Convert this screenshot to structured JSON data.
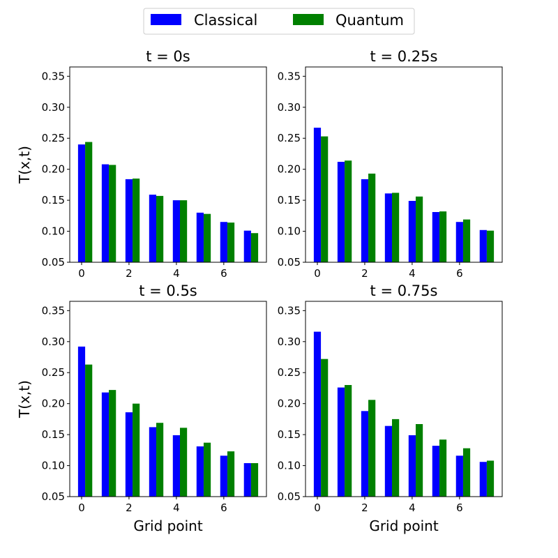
{
  "legend": {
    "position": "top-center",
    "entries": [
      {
        "name": "Classical",
        "color": "#0000ff"
      },
      {
        "name": "Quantum",
        "color": "#008000"
      }
    ]
  },
  "chart_data": [
    {
      "type": "bar",
      "title": "t = 0s",
      "xlabel": "",
      "ylabel": "T(x,t)",
      "x": [
        0,
        1,
        2,
        3,
        4,
        5,
        6,
        7
      ],
      "xticks": [
        "0",
        "2",
        "4",
        "6"
      ],
      "ylim": [
        0.05,
        0.365
      ],
      "yticks": [
        "0.05",
        "0.10",
        "0.15",
        "0.20",
        "0.25",
        "0.30",
        "0.35"
      ],
      "grid": false,
      "series": [
        {
          "name": "Classical",
          "color": "#0000ff",
          "values": [
            0.24,
            0.208,
            0.184,
            0.159,
            0.15,
            0.13,
            0.115,
            0.101
          ]
        },
        {
          "name": "Quantum",
          "color": "#008000",
          "values": [
            0.244,
            0.207,
            0.185,
            0.157,
            0.15,
            0.128,
            0.114,
            0.097
          ]
        }
      ]
    },
    {
      "type": "bar",
      "title": "t = 0.25s",
      "xlabel": "",
      "ylabel": "",
      "x": [
        0,
        1,
        2,
        3,
        4,
        5,
        6,
        7
      ],
      "xticks": [
        "0",
        "2",
        "4",
        "6"
      ],
      "ylim": [
        0.05,
        0.365
      ],
      "yticks": [
        "0.05",
        "0.10",
        "0.15",
        "0.20",
        "0.25",
        "0.30",
        "0.35"
      ],
      "grid": false,
      "series": [
        {
          "name": "Classical",
          "color": "#0000ff",
          "values": [
            0.267,
            0.212,
            0.184,
            0.161,
            0.149,
            0.131,
            0.115,
            0.102
          ]
        },
        {
          "name": "Quantum",
          "color": "#008000",
          "values": [
            0.253,
            0.214,
            0.193,
            0.162,
            0.156,
            0.132,
            0.119,
            0.101
          ]
        }
      ]
    },
    {
      "type": "bar",
      "title": "t = 0.5s",
      "xlabel": "Grid point",
      "ylabel": "T(x,t)",
      "x": [
        0,
        1,
        2,
        3,
        4,
        5,
        6,
        7
      ],
      "xticks": [
        "0",
        "2",
        "4",
        "6"
      ],
      "ylim": [
        0.05,
        0.365
      ],
      "yticks": [
        "0.05",
        "0.10",
        "0.15",
        "0.20",
        "0.25",
        "0.30",
        "0.35"
      ],
      "grid": false,
      "series": [
        {
          "name": "Classical",
          "color": "#0000ff",
          "values": [
            0.292,
            0.218,
            0.186,
            0.162,
            0.149,
            0.131,
            0.116,
            0.104
          ]
        },
        {
          "name": "Quantum",
          "color": "#008000",
          "values": [
            0.263,
            0.222,
            0.2,
            0.169,
            0.161,
            0.137,
            0.123,
            0.104
          ]
        }
      ]
    },
    {
      "type": "bar",
      "title": "t = 0.75s",
      "xlabel": "Grid point",
      "ylabel": "",
      "x": [
        0,
        1,
        2,
        3,
        4,
        5,
        6,
        7
      ],
      "xticks": [
        "0",
        "2",
        "4",
        "6"
      ],
      "ylim": [
        0.05,
        0.365
      ],
      "yticks": [
        "0.05",
        "0.10",
        "0.15",
        "0.20",
        "0.25",
        "0.30",
        "0.35"
      ],
      "grid": false,
      "series": [
        {
          "name": "Classical",
          "color": "#0000ff",
          "values": [
            0.316,
            0.226,
            0.188,
            0.164,
            0.149,
            0.132,
            0.116,
            0.106
          ]
        },
        {
          "name": "Quantum",
          "color": "#008000",
          "values": [
            0.272,
            0.23,
            0.206,
            0.175,
            0.167,
            0.142,
            0.128,
            0.108
          ]
        }
      ]
    }
  ]
}
